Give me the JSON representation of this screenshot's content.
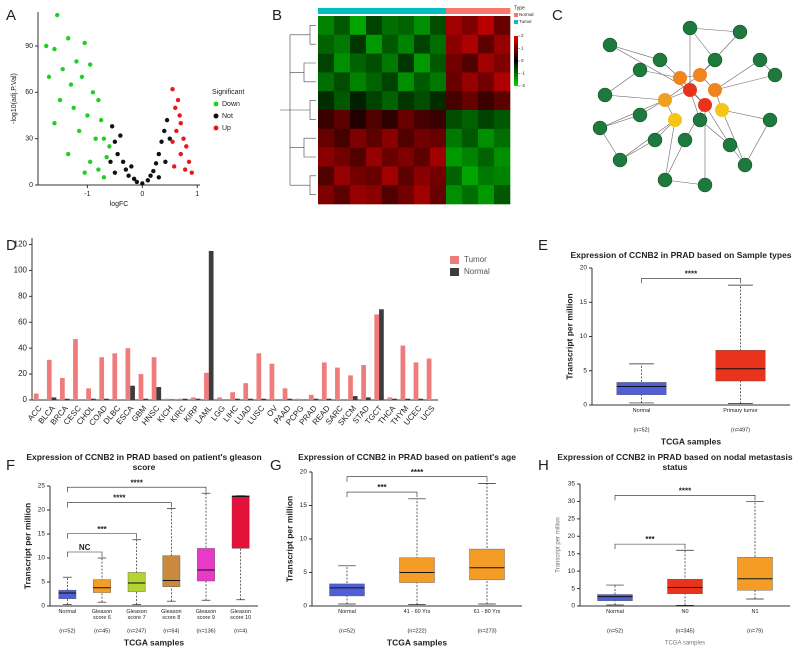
{
  "chart_data": [
    {
      "type": "scatter",
      "panel": "A",
      "xlabel": "logFC",
      "ylabel": "-log10(adj.P.Val)",
      "xlim": [
        -1.9,
        1.05
      ],
      "ylim": [
        0,
        112
      ],
      "xticks": [
        -1,
        0,
        1
      ],
      "yticks": [
        0,
        30,
        60,
        90
      ],
      "legend_title": "Significant",
      "series": [
        {
          "name": "Down",
          "color": "#1fd01f",
          "x": [
            -1.55,
            -1.75,
            -1.6,
            -1.35,
            -1.2,
            -1.05,
            -1.45,
            -1.7,
            -1.3,
            -1.1,
            -0.95,
            -0.9,
            -1.25,
            -1.5,
            -0.8,
            -1.0,
            -0.75,
            -1.15,
            -0.85,
            -0.7,
            -1.35,
            -0.95,
            -0.65,
            -0.8,
            -1.6,
            -0.6,
            -0.7,
            -1.05
          ],
          "y": [
            110,
            90,
            88,
            95,
            80,
            92,
            75,
            70,
            65,
            70,
            78,
            60,
            50,
            55,
            55,
            45,
            42,
            35,
            30,
            30,
            20,
            15,
            18,
            10,
            40,
            25,
            5,
            8
          ]
        },
        {
          "name": "Not",
          "color": "#111111",
          "x": [
            -0.55,
            -0.5,
            -0.45,
            -0.4,
            -0.35,
            -0.3,
            -0.25,
            -0.2,
            -0.15,
            -0.1,
            0,
            0.1,
            0.15,
            0.2,
            0.25,
            0.3,
            0.35,
            0.4,
            0.45,
            0.5,
            -0.58,
            -0.5,
            0.42,
            0.3
          ],
          "y": [
            38,
            28,
            20,
            32,
            15,
            10,
            6,
            12,
            4,
            2,
            1,
            3,
            6,
            9,
            14,
            20,
            28,
            35,
            42,
            30,
            15,
            8,
            15,
            5
          ]
        },
        {
          "name": "Up",
          "color": "#e8191c",
          "x": [
            0.55,
            0.6,
            0.65,
            0.7,
            0.62,
            0.75,
            0.8,
            0.7,
            0.85,
            0.58,
            0.9,
            0.68,
            0.55,
            0.78
          ],
          "y": [
            62,
            50,
            55,
            40,
            35,
            30,
            25,
            20,
            15,
            12,
            8,
            45,
            28,
            10
          ]
        }
      ]
    },
    {
      "type": "heatmap",
      "panel": "B",
      "legend_title": "Type",
      "groups": [
        {
          "name": "Normal",
          "color": "#f8766d"
        },
        {
          "name": "Tumor",
          "color": "#00bfc4"
        }
      ],
      "column_types": [
        "Tumor",
        "Tumor",
        "Tumor",
        "Tumor",
        "Tumor",
        "Tumor",
        "Tumor",
        "Tumor",
        "Normal",
        "Normal",
        "Normal",
        "Normal"
      ],
      "clim": [
        -2,
        2
      ],
      "colorbar_ticks": [
        2,
        1,
        0,
        -1,
        -2
      ],
      "values": [
        [
          -1.2,
          -0.8,
          -1.5,
          -0.6,
          -1.0,
          -0.9,
          -1.3,
          -0.7,
          1.4,
          1.1,
          1.6,
          0.9
        ],
        [
          -0.9,
          -1.1,
          -0.5,
          -1.4,
          -0.8,
          -1.2,
          -0.6,
          -1.0,
          1.2,
          1.5,
          0.8,
          1.3
        ],
        [
          -0.6,
          -1.3,
          -0.9,
          -0.7,
          -1.1,
          -0.5,
          -1.4,
          -0.8,
          1.0,
          0.7,
          1.4,
          1.1
        ],
        [
          -1.0,
          -0.7,
          -1.2,
          -0.9,
          -0.6,
          -1.3,
          -0.8,
          -1.1,
          0.9,
          1.3,
          1.0,
          1.5
        ],
        [
          -0.4,
          -0.8,
          -0.3,
          -0.6,
          -0.9,
          -0.5,
          -0.7,
          -0.4,
          0.6,
          0.9,
          0.5,
          0.8
        ],
        [
          0.5,
          0.8,
          0.3,
          0.7,
          0.4,
          0.9,
          0.6,
          0.5,
          -0.7,
          -0.9,
          -0.6,
          -0.8
        ],
        [
          0.9,
          0.6,
          1.1,
          0.8,
          1.2,
          0.7,
          1.0,
          0.9,
          -1.1,
          -0.8,
          -1.3,
          -1.0
        ],
        [
          1.2,
          1.0,
          0.7,
          1.3,
          0.9,
          1.1,
          0.8,
          1.4,
          -1.4,
          -1.2,
          -0.9,
          -1.3
        ],
        [
          0.7,
          1.3,
          1.0,
          0.9,
          1.4,
          0.8,
          1.2,
          1.0,
          -0.9,
          -1.5,
          -1.1,
          -1.2
        ],
        [
          1.1,
          0.8,
          1.3,
          1.2,
          0.7,
          1.0,
          1.4,
          0.9,
          -1.3,
          -1.0,
          -1.4,
          -0.8
        ]
      ]
    },
    {
      "type": "bar",
      "panel": "D",
      "categories": [
        "ACC",
        "BLCA",
        "BRCA",
        "CESC",
        "CHOL",
        "COAD",
        "DLBC",
        "ESCA",
        "GBM",
        "HNSC",
        "KICH",
        "KIRC",
        "KIRP",
        "LAML",
        "LGG",
        "LIHC",
        "LUAD",
        "LUSC",
        "OV",
        "PAAD",
        "PCPG",
        "PRAD",
        "READ",
        "SARC",
        "SKCM",
        "STAD",
        "TGCT",
        "THCA",
        "THYM",
        "UCEC",
        "UCS"
      ],
      "series": [
        {
          "name": "Tumor",
          "color": "#f07b7b",
          "values": [
            5,
            31,
            17,
            47,
            9,
            33,
            36,
            40,
            20,
            33,
            1,
            1,
            2,
            21,
            2,
            6,
            13,
            36,
            28,
            9,
            1,
            4,
            29,
            25,
            19,
            27,
            66,
            2,
            42,
            29,
            32
          ]
        },
        {
          "name": "Normal",
          "color": "#3c3c3c",
          "values": [
            0,
            2,
            1,
            0,
            1,
            1,
            0,
            11,
            1,
            10,
            0.5,
            1,
            1,
            115,
            0,
            1,
            1,
            1,
            0,
            1,
            0,
            1,
            1,
            0,
            3,
            2,
            70,
            1,
            1,
            1,
            0
          ]
        }
      ],
      "ylim": [
        0,
        125
      ],
      "yticks": [
        0,
        20,
        40,
        60,
        80,
        100,
        120
      ],
      "legend": "top-right"
    },
    {
      "type": "box",
      "panel": "E",
      "title": "Expression of CCNB2 in PRAD based on Sample types",
      "xlabel": "TCGA samples",
      "ylabel": "Transcript per million",
      "categories": [
        "Normal",
        "Primary tumor"
      ],
      "n_labels": [
        "(n=52)",
        "(n=497)"
      ],
      "ylim": [
        0,
        20
      ],
      "yticks": [
        0,
        5,
        10,
        15,
        20
      ],
      "boxes": [
        {
          "min": 0.3,
          "q1": 1.5,
          "median": 2.7,
          "q3": 3.3,
          "max": 6,
          "color": "#4f5fd8"
        },
        {
          "min": 0.2,
          "q1": 3.5,
          "median": 5.3,
          "q3": 8,
          "max": 17.5,
          "color": "#e8341c"
        }
      ],
      "comparisons": [
        {
          "groups": [
            "Normal",
            "Primary tumor"
          ],
          "label": "****"
        }
      ]
    },
    {
      "type": "box",
      "panel": "F",
      "title": "Expression of CCNB2 in PRAD based on patient's gleason score",
      "xlabel": "TCGA samples",
      "ylabel": "Transcript per million",
      "categories": [
        "Normal",
        "Gleason score 6",
        "Gleason score 7",
        "Gleason score 8",
        "Gleason score 9",
        "Gleason score 10"
      ],
      "n_labels": [
        "(n=52)",
        "(n=45)",
        "(n=247)",
        "(n=64)",
        "(n=136)",
        "(n=4)"
      ],
      "ylim": [
        0,
        25
      ],
      "yticks": [
        0,
        5,
        10,
        15,
        20,
        25
      ],
      "boxes": [
        {
          "min": 0.3,
          "q1": 1.5,
          "median": 2.7,
          "q3": 3.3,
          "max": 6,
          "color": "#4f5fd8"
        },
        {
          "min": 0.8,
          "q1": 2.8,
          "median": 3.8,
          "q3": 5.5,
          "max": 10,
          "color": "#f39c26"
        },
        {
          "min": 0.3,
          "q1": 3,
          "median": 4.8,
          "q3": 7,
          "max": 13.8,
          "color": "#b4d433"
        },
        {
          "min": 1,
          "q1": 4,
          "median": 5.3,
          "q3": 10.5,
          "max": 20.3,
          "color": "#c9893e"
        },
        {
          "min": 1.2,
          "q1": 5.2,
          "median": 7.5,
          "q3": 12,
          "max": 23.5,
          "color": "#e83ac6"
        },
        {
          "min": 1.3,
          "q1": 12,
          "median": 22.8,
          "q3": 23,
          "max": 23,
          "color": "#e4123b"
        }
      ],
      "comparisons": [
        {
          "groups": [
            "Normal",
            "Gleason score 6"
          ],
          "label": "NC"
        },
        {
          "groups": [
            "Normal",
            "Gleason score 7"
          ],
          "label": "***"
        },
        {
          "groups": [
            "Normal",
            "Gleason score 8"
          ],
          "label": "****"
        },
        {
          "groups": [
            "Normal",
            "Gleason score 9"
          ],
          "label": "****"
        }
      ]
    },
    {
      "type": "box",
      "panel": "G",
      "title": "Expression of CCNB2 in PRAD based on patient's age",
      "xlabel": "TCGA samples",
      "ylabel": "Transcript per million",
      "categories": [
        "Normal",
        "41 - 60 Yrs",
        "61 - 80 Yrs"
      ],
      "n_labels": [
        "(n=52)",
        "(n=222)",
        "(n=273)"
      ],
      "ylim": [
        0,
        20
      ],
      "yticks": [
        0,
        5,
        10,
        15,
        20
      ],
      "boxes": [
        {
          "min": 0.3,
          "q1": 1.5,
          "median": 2.7,
          "q3": 3.3,
          "max": 6,
          "color": "#4f5fd8"
        },
        {
          "min": 0.2,
          "q1": 3.5,
          "median": 5,
          "q3": 7.2,
          "max": 16,
          "color": "#f39c26"
        },
        {
          "min": 0.3,
          "q1": 3.9,
          "median": 5.7,
          "q3": 8.5,
          "max": 18.3,
          "color": "#f39c26"
        }
      ],
      "comparisons": [
        {
          "groups": [
            "Normal",
            "41 - 60 Yrs"
          ],
          "label": "***"
        },
        {
          "groups": [
            "Normal",
            "61 - 80 Yrs"
          ],
          "label": "****"
        }
      ]
    },
    {
      "type": "box",
      "panel": "H",
      "title": "Expression of CCNB2 in PRAD based on nodal metastasis status",
      "xlabel": "TCGA samples",
      "ylabel": "Transcript per million",
      "categories": [
        "Normal",
        "N0",
        "N1"
      ],
      "n_labels": [
        "(n=52)",
        "(n=345)",
        "(n=79)"
      ],
      "ylim": [
        0,
        35
      ],
      "yticks": [
        0,
        5,
        10,
        15,
        20,
        25,
        30,
        35
      ],
      "boxes": [
        {
          "min": 0.3,
          "q1": 1.5,
          "median": 2.7,
          "q3": 3.3,
          "max": 6,
          "color": "#4f5fd8"
        },
        {
          "min": 0.2,
          "q1": 3.5,
          "median": 5.3,
          "q3": 7.7,
          "max": 16,
          "color": "#e8341c"
        },
        {
          "min": 2,
          "q1": 4.5,
          "median": 7.8,
          "q3": 14,
          "max": 30,
          "color": "#f39c26"
        }
      ],
      "comparisons": [
        {
          "groups": [
            "Normal",
            "N0"
          ],
          "label": "***"
        },
        {
          "groups": [
            "Normal",
            "N1"
          ],
          "label": "****"
        }
      ]
    }
  ],
  "network": {
    "panel": "C"
  }
}
